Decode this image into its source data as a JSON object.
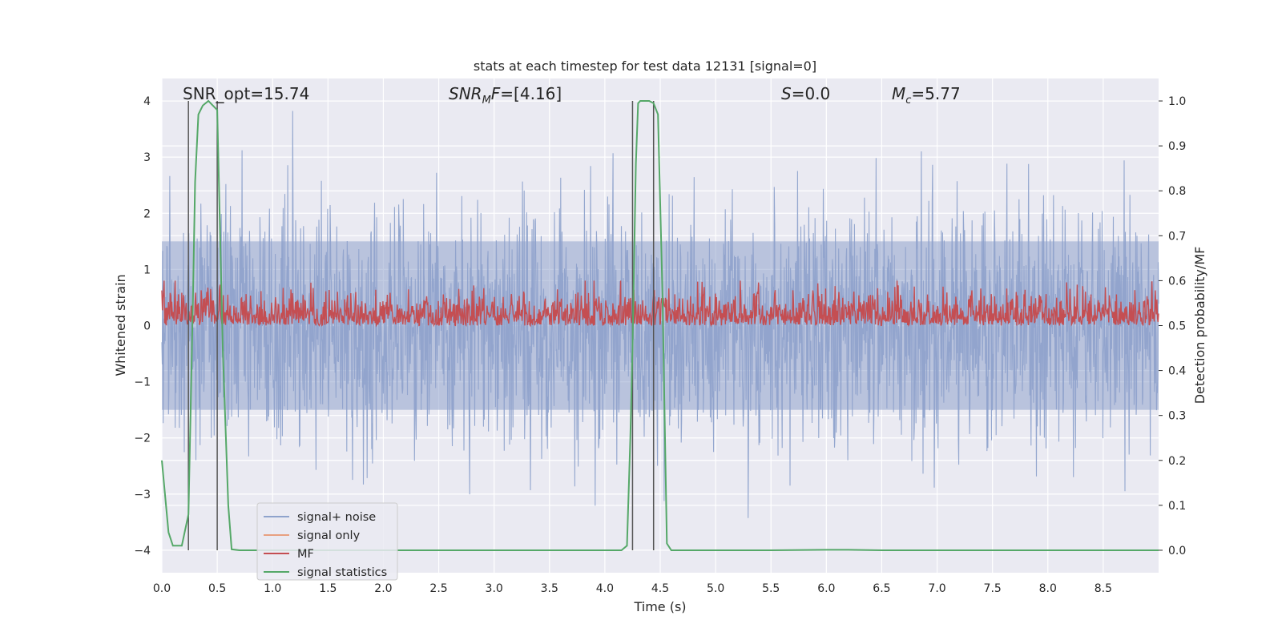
{
  "chart_data": {
    "type": "line",
    "title": "stats at each timestep for test data 12131 [signal=0]",
    "xlabel": "Time (s)",
    "ylabel": "Whitened strain",
    "y2label": "Detection probability/MF",
    "xlim": [
      0.0,
      9.0
    ],
    "ylim": [
      -4.4,
      4.4
    ],
    "y2lim": [
      -0.05,
      1.05
    ],
    "x_ticks": [
      "0.0",
      "0.5",
      "1.0",
      "1.5",
      "2.0",
      "2.5",
      "3.0",
      "3.5",
      "4.0",
      "4.5",
      "5.0",
      "5.5",
      "6.0",
      "6.5",
      "7.0",
      "7.5",
      "8.0",
      "8.5"
    ],
    "y_ticks": [
      "−4",
      "−3",
      "−2",
      "−1",
      "0",
      "1",
      "2",
      "3",
      "4"
    ],
    "y2_ticks": [
      "0.0",
      "0.1",
      "0.2",
      "0.3",
      "0.4",
      "0.5",
      "0.6",
      "0.7",
      "0.8",
      "0.9",
      "1.0"
    ],
    "grid": true,
    "legend_position": "lower-left",
    "annotations": {
      "snr_opt": "SNR_opt=15.74",
      "snr_mf_main": "SNR",
      "snr_mf_sub": "M",
      "snr_mf_tail": "F=[4.16]",
      "s_var": "S",
      "s_val": "=0.0",
      "mc_var": "M",
      "mc_sub": "c",
      "mc_val": "=5.77"
    },
    "series": [
      {
        "name": "signal+ noise",
        "color": "#8fa3cc",
        "kind": "noise",
        "amplitude_typical": 2.0,
        "amplitude_max": 4.0
      },
      {
        "name": "signal only",
        "color": "#e8a080",
        "kind": "flat",
        "values": []
      },
      {
        "name": "MF",
        "color": "#c44e52",
        "kind": "mf",
        "range_y2": [
          0.5,
          0.6
        ]
      },
      {
        "name": "signal statistics",
        "color": "#55a868",
        "kind": "line",
        "axis": "y2",
        "x": [
          0.0,
          0.06,
          0.1,
          0.18,
          0.24,
          0.28,
          0.3,
          0.33,
          0.37,
          0.42,
          0.46,
          0.5,
          0.55,
          0.6,
          0.63,
          0.7,
          0.8,
          1.0,
          1.5,
          2.0,
          2.5,
          3.0,
          3.5,
          4.0,
          4.15,
          4.2,
          4.23,
          4.25,
          4.28,
          4.3,
          4.32,
          4.4,
          4.44,
          4.48,
          4.52,
          4.56,
          4.6,
          4.7,
          5.0,
          5.5,
          6.0,
          6.2,
          6.5,
          7.0,
          7.5,
          8.0,
          8.5,
          9.0
        ],
        "y": [
          0.2,
          0.04,
          0.01,
          0.01,
          0.08,
          0.55,
          0.82,
          0.97,
          0.99,
          1.0,
          0.99,
          0.98,
          0.45,
          0.1,
          0.002,
          0.0,
          0.0,
          0.0,
          0.0,
          0.0,
          0.0,
          0.0,
          0.0,
          0.0,
          0.0,
          0.01,
          0.25,
          0.45,
          0.86,
          0.995,
          1.0,
          1.0,
          0.995,
          0.97,
          0.57,
          0.015,
          0.0,
          0.0,
          0.0,
          0.0,
          0.001,
          0.001,
          0.0,
          0.0,
          0.0,
          0.0,
          0.0,
          0.0
        ]
      }
    ],
    "vlines_x": [
      0.24,
      0.5,
      4.25,
      4.44
    ],
    "colors": {
      "axes_bg": "#eaeaf2",
      "grid": "#ffffff",
      "vline": "#555555"
    }
  }
}
